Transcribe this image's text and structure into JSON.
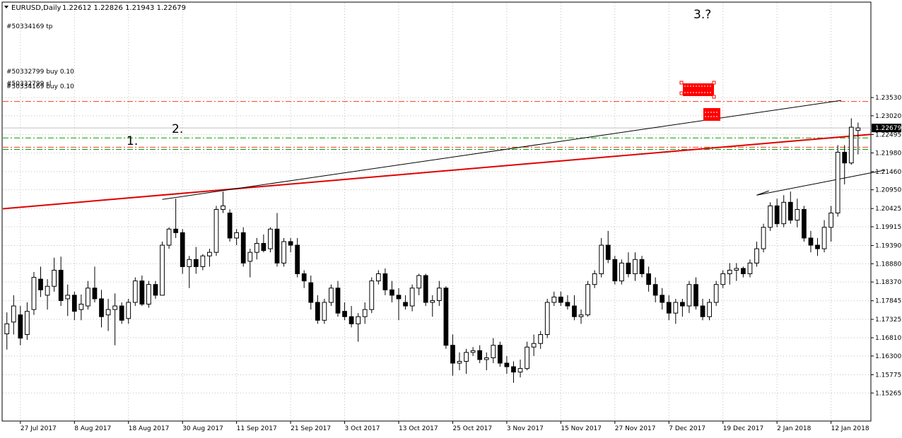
{
  "window": {
    "symbol_label": "EURUSD,Daily",
    "ohlc_label": "1.22612 1.22826 1.21943 1.22679",
    "menu_icon": "triangle-down-icon"
  },
  "colors": {
    "background": "#ffffff",
    "candle": "#000000",
    "grid": "#c0c0c0",
    "trendline_red": "#e00000",
    "trendline_black": "#000000",
    "tp_line": "#ff3b1f",
    "buy_line": "#00a000",
    "sl_line": "#ff3b1f",
    "price_tag_bg": "#000000",
    "price_tag_fg": "#ffffff",
    "order_box": "#ff0000"
  },
  "annotations": {
    "point1": "1.",
    "point2": "2.",
    "point3": "3.?"
  },
  "order_labels": {
    "tp": "#50334169 tp",
    "buy_upper": "#50332799 buy 0.10",
    "buy_lower": "#50334169 buy 0.10",
    "sl": "#50332799 sl"
  },
  "price_tag": "1.22679",
  "chart_data": {
    "type": "candlestick",
    "title": "EURUSD,Daily",
    "ylim": [
      1.1448,
      1.2618
    ],
    "y_ticks": [
      "1.23530",
      "1.23020",
      "1.22495",
      "1.21980",
      "1.21460",
      "1.20950",
      "1.20425",
      "1.19915",
      "1.19390",
      "1.18880",
      "1.18370",
      "1.17845",
      "1.17325",
      "1.16810",
      "1.16300",
      "1.15775",
      "1.15265"
    ],
    "x_ticks": [
      "27 Jul 2017",
      "8 Aug 2017",
      "18 Aug 2017",
      "30 Aug 2017",
      "11 Sep 2017",
      "21 Sep 2017",
      "3 Oct 2017",
      "13 Oct 2017",
      "25 Oct 2017",
      "3 Nov 2017",
      "15 Nov 2017",
      "27 Nov 2017",
      "7 Dec 2017",
      "19 Dec 2017",
      "2 Jan 2018",
      "12 Jan 2018"
    ],
    "x_tick_positions": [
      2,
      10,
      18,
      26,
      34,
      42,
      50,
      58,
      66,
      74,
      82,
      90,
      98,
      106,
      114,
      122
    ],
    "horizontal_levels": {
      "tp": 1.2342,
      "buy_upper": 1.224,
      "buy_lower": 1.2208,
      "sl": 1.2214,
      "last_price": 1.22679
    },
    "candles": [
      [
        1.1692,
        1.1752,
        1.1648,
        1.172
      ],
      [
        1.1725,
        1.18,
        1.169,
        1.177
      ],
      [
        1.1745,
        1.177,
        1.166,
        1.168
      ],
      [
        1.169,
        1.178,
        1.1675,
        1.1755
      ],
      [
        1.176,
        1.1865,
        1.1745,
        1.185
      ],
      [
        1.1845,
        1.188,
        1.1795,
        1.1815
      ],
      [
        1.18,
        1.1845,
        1.176,
        1.1825
      ],
      [
        1.1825,
        1.1905,
        1.181,
        1.187
      ],
      [
        1.187,
        1.1908,
        1.177,
        1.1785
      ],
      [
        1.179,
        1.183,
        1.1742,
        1.18
      ],
      [
        1.18,
        1.181,
        1.173,
        1.1755
      ],
      [
        1.176,
        1.1802,
        1.173,
        1.1775
      ],
      [
        1.177,
        1.184,
        1.176,
        1.182
      ],
      [
        1.182,
        1.188,
        1.178,
        1.179
      ],
      [
        1.179,
        1.1815,
        1.171,
        1.174
      ],
      [
        1.1745,
        1.179,
        1.17,
        1.176
      ],
      [
        1.176,
        1.1805,
        1.166,
        1.177
      ],
      [
        1.177,
        1.178,
        1.172,
        1.173
      ],
      [
        1.1735,
        1.179,
        1.172,
        1.178
      ],
      [
        1.178,
        1.185,
        1.177,
        1.184
      ],
      [
        1.184,
        1.1855,
        1.177,
        1.1775
      ],
      [
        1.1775,
        1.184,
        1.1765,
        1.183
      ],
      [
        1.183,
        1.184,
        1.179,
        1.18
      ],
      [
        1.18,
        1.195,
        1.18,
        1.194
      ],
      [
        1.194,
        1.199,
        1.193,
        1.1985
      ],
      [
        1.1985,
        1.207,
        1.196,
        1.1975
      ],
      [
        1.1975,
        1.1985,
        1.186,
        1.188
      ],
      [
        1.188,
        1.191,
        1.182,
        1.19
      ],
      [
        1.19,
        1.1935,
        1.186,
        1.188
      ],
      [
        1.188,
        1.1915,
        1.187,
        1.191
      ],
      [
        1.191,
        1.193,
        1.188,
        1.192
      ],
      [
        1.192,
        1.205,
        1.191,
        1.204
      ],
      [
        1.204,
        1.209,
        1.203,
        1.205
      ],
      [
        1.203,
        1.204,
        1.195,
        1.196
      ],
      [
        1.196,
        1.1985,
        1.194,
        1.1975
      ],
      [
        1.1975,
        1.199,
        1.188,
        1.189
      ],
      [
        1.1895,
        1.193,
        1.185,
        1.192
      ],
      [
        1.192,
        1.196,
        1.19,
        1.1945
      ],
      [
        1.1945,
        1.197,
        1.192,
        1.1925
      ],
      [
        1.193,
        1.199,
        1.192,
        1.1985
      ],
      [
        1.1985,
        1.203,
        1.188,
        1.189
      ],
      [
        1.189,
        1.196,
        1.188,
        1.195
      ],
      [
        1.195,
        1.196,
        1.192,
        1.194
      ],
      [
        1.194,
        1.196,
        1.185,
        1.186
      ],
      [
        1.186,
        1.187,
        1.182,
        1.184
      ],
      [
        1.1835,
        1.1855,
        1.176,
        1.178
      ],
      [
        1.178,
        1.18,
        1.172,
        1.173
      ],
      [
        1.173,
        1.179,
        1.172,
        1.178
      ],
      [
        1.178,
        1.183,
        1.177,
        1.182
      ],
      [
        1.182,
        1.184,
        1.174,
        1.175
      ],
      [
        1.1755,
        1.178,
        1.173,
        1.174
      ],
      [
        1.174,
        1.177,
        1.171,
        1.172
      ],
      [
        1.172,
        1.175,
        1.167,
        1.174
      ],
      [
        1.174,
        1.178,
        1.172,
        1.176
      ],
      [
        1.176,
        1.185,
        1.175,
        1.184
      ],
      [
        1.184,
        1.187,
        1.183,
        1.186
      ],
      [
        1.186,
        1.1875,
        1.18,
        1.1815
      ],
      [
        1.1815,
        1.184,
        1.178,
        1.18
      ],
      [
        1.18,
        1.182,
        1.173,
        1.179
      ],
      [
        1.178,
        1.18,
        1.176,
        1.177
      ],
      [
        1.177,
        1.183,
        1.1755,
        1.182
      ],
      [
        1.182,
        1.186,
        1.18,
        1.1855
      ],
      [
        1.1855,
        1.186,
        1.177,
        1.178
      ],
      [
        1.178,
        1.18,
        1.174,
        1.1785
      ],
      [
        1.1785,
        1.184,
        1.177,
        1.182
      ],
      [
        1.182,
        1.1825,
        1.165,
        1.166
      ],
      [
        1.166,
        1.169,
        1.1575,
        1.161
      ],
      [
        1.161,
        1.164,
        1.159,
        1.1615
      ],
      [
        1.1615,
        1.165,
        1.158,
        1.164
      ],
      [
        1.164,
        1.1655,
        1.163,
        1.1645
      ],
      [
        1.1645,
        1.166,
        1.161,
        1.162
      ],
      [
        1.162,
        1.164,
        1.159,
        1.1625
      ],
      [
        1.1625,
        1.168,
        1.161,
        1.166
      ],
      [
        1.166,
        1.167,
        1.16,
        1.161
      ],
      [
        1.161,
        1.163,
        1.158,
        1.16
      ],
      [
        1.16,
        1.1615,
        1.1555,
        1.1585
      ],
      [
        1.1585,
        1.162,
        1.157,
        1.1595
      ],
      [
        1.1595,
        1.167,
        1.159,
        1.1655
      ],
      [
        1.1655,
        1.169,
        1.163,
        1.1665
      ],
      [
        1.1665,
        1.17,
        1.165,
        1.169
      ],
      [
        1.169,
        1.179,
        1.168,
        1.178
      ],
      [
        1.178,
        1.181,
        1.177,
        1.1795
      ],
      [
        1.1795,
        1.181,
        1.177,
        1.178
      ],
      [
        1.178,
        1.18,
        1.176,
        1.177
      ],
      [
        1.177,
        1.18,
        1.173,
        1.174
      ],
      [
        1.174,
        1.176,
        1.172,
        1.1745
      ],
      [
        1.1745,
        1.184,
        1.174,
        1.183
      ],
      [
        1.183,
        1.187,
        1.182,
        1.186
      ],
      [
        1.186,
        1.196,
        1.185,
        1.194
      ],
      [
        1.194,
        1.198,
        1.189,
        1.19
      ],
      [
        1.19,
        1.191,
        1.183,
        1.184
      ],
      [
        1.184,
        1.19,
        1.183,
        1.189
      ],
      [
        1.189,
        1.192,
        1.185,
        1.186
      ],
      [
        1.186,
        1.192,
        1.184,
        1.19
      ],
      [
        1.19,
        1.191,
        1.185,
        1.186
      ],
      [
        1.186,
        1.188,
        1.181,
        1.183
      ],
      [
        1.183,
        1.185,
        1.178,
        1.18
      ],
      [
        1.18,
        1.182,
        1.176,
        1.178
      ],
      [
        1.178,
        1.18,
        1.173,
        1.175
      ],
      [
        1.175,
        1.179,
        1.172,
        1.178
      ],
      [
        1.178,
        1.179,
        1.174,
        1.177
      ],
      [
        1.177,
        1.184,
        1.175,
        1.183
      ],
      [
        1.183,
        1.185,
        1.176,
        1.177
      ],
      [
        1.177,
        1.179,
        1.173,
        1.174
      ],
      [
        1.174,
        1.179,
        1.173,
        1.178
      ],
      [
        1.178,
        1.184,
        1.177,
        1.183
      ],
      [
        1.183,
        1.187,
        1.182,
        1.186
      ],
      [
        1.186,
        1.189,
        1.183,
        1.187
      ],
      [
        1.187,
        1.189,
        1.184,
        1.1875
      ],
      [
        1.1875,
        1.188,
        1.185,
        1.186
      ],
      [
        1.186,
        1.19,
        1.185,
        1.189
      ],
      [
        1.189,
        1.195,
        1.188,
        1.193
      ],
      [
        1.193,
        1.2,
        1.192,
        1.199
      ],
      [
        1.199,
        1.206,
        1.198,
        1.205
      ],
      [
        1.205,
        1.207,
        1.199,
        1.2
      ],
      [
        1.2,
        1.208,
        1.199,
        1.206
      ],
      [
        1.206,
        1.209,
        1.2,
        1.201
      ],
      [
        1.201,
        1.207,
        1.199,
        1.204
      ],
      [
        1.204,
        1.205,
        1.195,
        1.196
      ],
      [
        1.196,
        1.198,
        1.192,
        1.194
      ],
      [
        1.194,
        1.196,
        1.191,
        1.193
      ],
      [
        1.193,
        1.201,
        1.192,
        1.199
      ],
      [
        1.199,
        1.205,
        1.195,
        1.203
      ],
      [
        1.203,
        1.222,
        1.202,
        1.22
      ],
      [
        1.22,
        1.222,
        1.211,
        1.217
      ],
      [
        1.217,
        1.2295,
        1.2165,
        1.227
      ],
      [
        1.2261,
        1.2283,
        1.2194,
        1.2268
      ]
    ]
  }
}
